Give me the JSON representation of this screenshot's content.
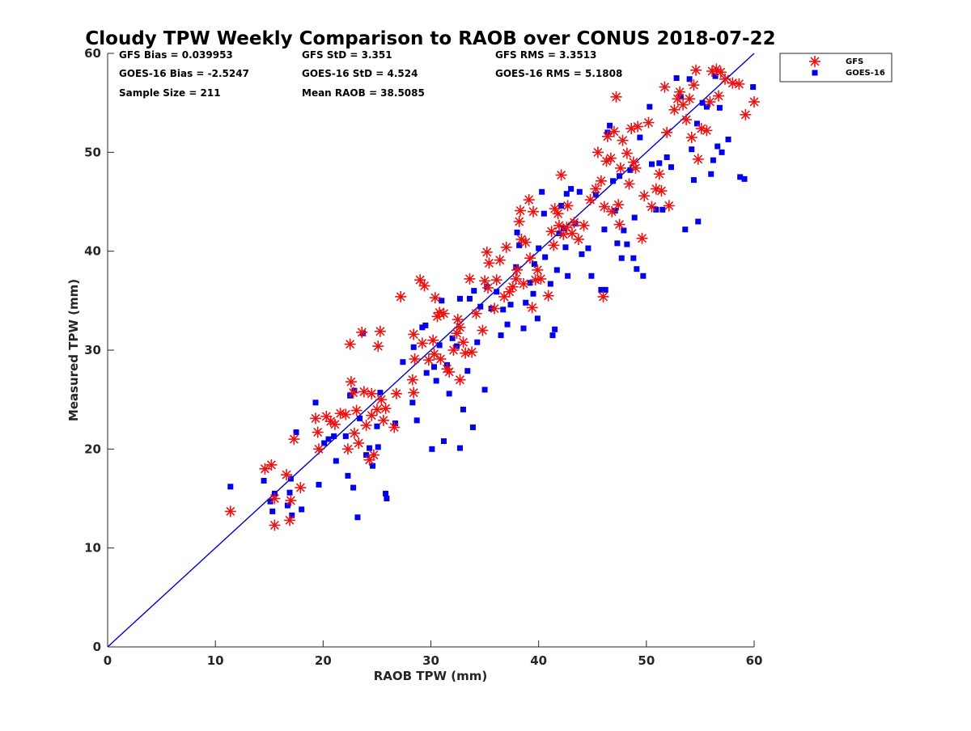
{
  "chart_data": {
    "type": "scatter",
    "title": "Cloudy TPW Weekly Comparison to RAOB over CONUS 2018-07-22",
    "xlabel": "RAOB TPW (mm)",
    "ylabel": "Measured TPW (mm)",
    "xlim": [
      0,
      60
    ],
    "ylim": [
      0,
      60
    ],
    "xticks": [
      "0",
      "10",
      "20",
      "30",
      "40",
      "50",
      "60"
    ],
    "yticks": [
      "0",
      "10",
      "20",
      "30",
      "40",
      "50",
      "60"
    ],
    "grid": false,
    "legend_position": "top-right, outside plot",
    "stats": [
      "GFS Bias = 0.039953",
      "GOES-16 Bias = -2.5247",
      "Sample Size = 211",
      "GFS StD = 3.351",
      "GOES-16 StD = 4.524",
      "Mean RAOB = 38.5085",
      "GFS RMS = 3.3513",
      "GOES-16 RMS = 5.1808"
    ],
    "reference_line": {
      "points": [
        [
          0,
          0
        ],
        [
          60,
          60
        ]
      ],
      "color": "#0000cc"
    },
    "series": [
      {
        "name": "GFS",
        "marker": "asterisk",
        "color": "#ee1111",
        "points": [
          [
            11.4,
            13.7
          ],
          [
            14.6,
            18.0
          ],
          [
            15.2,
            18.4
          ],
          [
            15.5,
            15.0
          ],
          [
            15.5,
            12.3
          ],
          [
            16.6,
            17.4
          ],
          [
            16.9,
            12.8
          ],
          [
            17.0,
            14.8
          ],
          [
            17.3,
            21.0
          ],
          [
            17.9,
            16.1
          ],
          [
            19.3,
            23.1
          ],
          [
            19.5,
            21.7
          ],
          [
            19.6,
            20.0
          ],
          [
            20.3,
            23.3
          ],
          [
            20.7,
            22.8
          ],
          [
            21.1,
            22.5
          ],
          [
            21.6,
            23.6
          ],
          [
            22.1,
            23.5
          ],
          [
            22.3,
            20.0
          ],
          [
            22.5,
            30.6
          ],
          [
            22.6,
            26.8
          ],
          [
            22.8,
            25.7
          ],
          [
            22.9,
            21.6
          ],
          [
            23.1,
            23.9
          ],
          [
            23.3,
            20.6
          ],
          [
            23.6,
            31.8
          ],
          [
            23.8,
            25.8
          ],
          [
            24.0,
            22.4
          ],
          [
            24.3,
            18.9
          ],
          [
            24.5,
            25.6
          ],
          [
            24.5,
            23.4
          ],
          [
            24.7,
            19.4
          ],
          [
            25.0,
            24.0
          ],
          [
            25.1,
            30.4
          ],
          [
            25.3,
            31.9
          ],
          [
            25.4,
            25.0
          ],
          [
            25.6,
            22.9
          ],
          [
            25.8,
            24.1
          ],
          [
            26.6,
            22.2
          ],
          [
            26.8,
            25.6
          ],
          [
            27.2,
            35.4
          ],
          [
            28.3,
            27.0
          ],
          [
            28.4,
            25.7
          ],
          [
            28.4,
            31.6
          ],
          [
            28.5,
            29.1
          ],
          [
            29.0,
            37.1
          ],
          [
            29.2,
            30.7
          ],
          [
            29.4,
            36.5
          ],
          [
            29.8,
            29.0
          ],
          [
            30.2,
            31.0
          ],
          [
            30.3,
            29.6
          ],
          [
            30.4,
            35.3
          ],
          [
            30.6,
            33.4
          ],
          [
            30.8,
            33.8
          ],
          [
            30.9,
            29.1
          ],
          [
            31.2,
            33.7
          ],
          [
            31.5,
            28.1
          ],
          [
            31.7,
            27.8
          ],
          [
            32.1,
            30.0
          ],
          [
            32.4,
            31.7
          ],
          [
            32.5,
            33.1
          ],
          [
            32.7,
            32.3
          ],
          [
            32.7,
            27.0
          ],
          [
            33.0,
            30.8
          ],
          [
            33.2,
            29.7
          ],
          [
            33.6,
            37.2
          ],
          [
            33.8,
            29.8
          ],
          [
            34.2,
            33.7
          ],
          [
            34.8,
            32.0
          ],
          [
            35.0,
            37.0
          ],
          [
            35.2,
            39.9
          ],
          [
            35.3,
            36.3
          ],
          [
            35.4,
            38.8
          ],
          [
            35.9,
            34.2
          ],
          [
            36.1,
            37.1
          ],
          [
            36.4,
            39.1
          ],
          [
            36.8,
            35.4
          ],
          [
            37.0,
            40.4
          ],
          [
            37.3,
            35.9
          ],
          [
            37.6,
            36.4
          ],
          [
            37.9,
            37.2
          ],
          [
            38.0,
            38.1
          ],
          [
            38.2,
            43.0
          ],
          [
            38.3,
            44.1
          ],
          [
            38.4,
            41.2
          ],
          [
            38.6,
            36.7
          ],
          [
            38.8,
            40.9
          ],
          [
            39.1,
            45.2
          ],
          [
            39.2,
            39.3
          ],
          [
            39.4,
            34.3
          ],
          [
            39.5,
            44.0
          ],
          [
            39.7,
            37.1
          ],
          [
            39.9,
            38.1
          ],
          [
            40.2,
            37.2
          ],
          [
            40.9,
            35.5
          ],
          [
            41.2,
            42.0
          ],
          [
            41.4,
            40.6
          ],
          [
            41.5,
            44.3
          ],
          [
            41.8,
            43.8
          ],
          [
            41.9,
            42.6
          ],
          [
            42.1,
            47.7
          ],
          [
            42.3,
            41.7
          ],
          [
            42.6,
            42.4
          ],
          [
            42.7,
            44.6
          ],
          [
            43.1,
            41.8
          ],
          [
            43.3,
            42.9
          ],
          [
            43.7,
            41.2
          ],
          [
            44.2,
            42.6
          ],
          [
            44.8,
            45.2
          ],
          [
            45.3,
            46.3
          ],
          [
            45.5,
            50.0
          ],
          [
            45.8,
            47.1
          ],
          [
            46.0,
            35.4
          ],
          [
            46.1,
            44.5
          ],
          [
            46.3,
            49.1
          ],
          [
            46.4,
            51.6
          ],
          [
            46.7,
            49.4
          ],
          [
            46.8,
            44.0
          ],
          [
            47.0,
            52.1
          ],
          [
            47.2,
            55.6
          ],
          [
            47.4,
            44.7
          ],
          [
            47.5,
            42.7
          ],
          [
            47.6,
            48.4
          ],
          [
            47.8,
            51.2
          ],
          [
            48.2,
            49.9
          ],
          [
            48.4,
            46.8
          ],
          [
            48.6,
            52.4
          ],
          [
            48.8,
            49.0
          ],
          [
            49.0,
            48.4
          ],
          [
            49.2,
            52.6
          ],
          [
            49.6,
            41.3
          ],
          [
            49.8,
            45.6
          ],
          [
            50.2,
            53.0
          ],
          [
            50.5,
            44.5
          ],
          [
            50.9,
            46.3
          ],
          [
            51.2,
            47.8
          ],
          [
            51.4,
            46.1
          ],
          [
            51.7,
            56.6
          ],
          [
            51.9,
            52.0
          ],
          [
            52.1,
            44.6
          ],
          [
            52.6,
            54.3
          ],
          [
            52.9,
            55.4
          ],
          [
            53.1,
            56.1
          ],
          [
            53.4,
            54.8
          ],
          [
            53.7,
            53.3
          ],
          [
            54.0,
            55.4
          ],
          [
            54.2,
            51.5
          ],
          [
            54.4,
            56.8
          ],
          [
            54.6,
            58.3
          ],
          [
            54.8,
            49.3
          ],
          [
            55.1,
            52.4
          ],
          [
            55.6,
            52.2
          ],
          [
            55.9,
            55.1
          ],
          [
            56.1,
            58.2
          ],
          [
            56.5,
            58.4
          ],
          [
            56.7,
            55.7
          ],
          [
            56.9,
            58.1
          ],
          [
            57.3,
            57.4
          ],
          [
            58.0,
            57.0
          ],
          [
            58.6,
            56.9
          ],
          [
            59.2,
            53.8
          ],
          [
            60.0,
            55.1
          ]
        ]
      },
      {
        "name": "GOES-16",
        "marker": "square",
        "color": "#0000ee",
        "points": [
          [
            11.4,
            16.2
          ],
          [
            14.5,
            16.8
          ],
          [
            15.1,
            14.7
          ],
          [
            15.3,
            13.7
          ],
          [
            15.5,
            15.5
          ],
          [
            16.7,
            14.3
          ],
          [
            16.9,
            15.6
          ],
          [
            17.0,
            17.0
          ],
          [
            17.1,
            13.3
          ],
          [
            17.5,
            21.7
          ],
          [
            18.0,
            13.9
          ],
          [
            19.3,
            24.7
          ],
          [
            19.6,
            16.4
          ],
          [
            20.1,
            20.6
          ],
          [
            20.5,
            21.0
          ],
          [
            21.0,
            21.3
          ],
          [
            21.2,
            18.8
          ],
          [
            22.1,
            21.3
          ],
          [
            22.3,
            17.3
          ],
          [
            22.5,
            25.4
          ],
          [
            22.8,
            16.1
          ],
          [
            22.9,
            25.9
          ],
          [
            23.2,
            13.1
          ],
          [
            23.4,
            23.1
          ],
          [
            23.7,
            31.7
          ],
          [
            24.0,
            19.4
          ],
          [
            24.3,
            20.1
          ],
          [
            24.6,
            18.3
          ],
          [
            25.0,
            22.3
          ],
          [
            25.1,
            20.2
          ],
          [
            25.3,
            25.7
          ],
          [
            25.8,
            15.5
          ],
          [
            25.9,
            15.0
          ],
          [
            26.7,
            22.6
          ],
          [
            27.4,
            28.8
          ],
          [
            28.3,
            24.7
          ],
          [
            28.4,
            30.3
          ],
          [
            28.7,
            22.9
          ],
          [
            29.2,
            32.3
          ],
          [
            29.5,
            32.5
          ],
          [
            29.6,
            27.7
          ],
          [
            30.1,
            20.0
          ],
          [
            30.3,
            28.3
          ],
          [
            30.5,
            26.9
          ],
          [
            30.8,
            30.5
          ],
          [
            31.0,
            35.0
          ],
          [
            31.2,
            20.8
          ],
          [
            31.5,
            28.5
          ],
          [
            31.7,
            25.6
          ],
          [
            32.0,
            31.2
          ],
          [
            32.4,
            30.4
          ],
          [
            32.7,
            35.2
          ],
          [
            32.7,
            20.1
          ],
          [
            33.0,
            24.0
          ],
          [
            33.4,
            27.9
          ],
          [
            33.6,
            35.2
          ],
          [
            33.9,
            22.2
          ],
          [
            34.0,
            36.0
          ],
          [
            34.3,
            30.8
          ],
          [
            34.6,
            34.4
          ],
          [
            35.0,
            26.0
          ],
          [
            35.2,
            36.4
          ],
          [
            35.6,
            34.2
          ],
          [
            36.1,
            35.9
          ],
          [
            36.5,
            31.5
          ],
          [
            36.7,
            34.1
          ],
          [
            37.1,
            32.6
          ],
          [
            37.4,
            34.6
          ],
          [
            37.9,
            38.4
          ],
          [
            38.0,
            41.9
          ],
          [
            38.2,
            40.6
          ],
          [
            38.6,
            32.2
          ],
          [
            38.8,
            34.8
          ],
          [
            39.2,
            36.8
          ],
          [
            39.5,
            35.7
          ],
          [
            39.6,
            38.7
          ],
          [
            39.9,
            33.2
          ],
          [
            40.0,
            40.3
          ],
          [
            40.3,
            46.0
          ],
          [
            40.5,
            43.8
          ],
          [
            40.6,
            39.4
          ],
          [
            41.1,
            36.7
          ],
          [
            41.3,
            31.5
          ],
          [
            41.5,
            32.1
          ],
          [
            41.7,
            38.1
          ],
          [
            41.9,
            41.8
          ],
          [
            42.1,
            44.6
          ],
          [
            42.3,
            42.3
          ],
          [
            42.5,
            40.4
          ],
          [
            42.6,
            45.8
          ],
          [
            42.7,
            37.5
          ],
          [
            43.0,
            46.3
          ],
          [
            43.4,
            42.8
          ],
          [
            43.8,
            46.0
          ],
          [
            44.0,
            39.7
          ],
          [
            44.6,
            40.3
          ],
          [
            44.9,
            37.5
          ],
          [
            45.3,
            45.7
          ],
          [
            45.8,
            36.1
          ],
          [
            46.1,
            42.2
          ],
          [
            46.2,
            36.1
          ],
          [
            46.4,
            52.0
          ],
          [
            46.6,
            52.7
          ],
          [
            46.9,
            47.1
          ],
          [
            47.1,
            44.1
          ],
          [
            47.3,
            40.8
          ],
          [
            47.5,
            47.6
          ],
          [
            47.7,
            39.3
          ],
          [
            47.9,
            42.1
          ],
          [
            48.2,
            40.7
          ],
          [
            48.5,
            48.2
          ],
          [
            48.8,
            39.3
          ],
          [
            48.9,
            43.4
          ],
          [
            49.1,
            38.2
          ],
          [
            49.4,
            51.5
          ],
          [
            49.7,
            37.5
          ],
          [
            50.3,
            54.6
          ],
          [
            50.5,
            48.8
          ],
          [
            50.9,
            44.2
          ],
          [
            51.2,
            48.9
          ],
          [
            51.5,
            44.2
          ],
          [
            51.9,
            49.5
          ],
          [
            52.3,
            48.5
          ],
          [
            52.8,
            57.5
          ],
          [
            53.2,
            55.6
          ],
          [
            53.6,
            42.2
          ],
          [
            54.0,
            57.4
          ],
          [
            54.2,
            50.3
          ],
          [
            54.4,
            47.2
          ],
          [
            54.7,
            52.9
          ],
          [
            54.8,
            43.0
          ],
          [
            55.2,
            55.0
          ],
          [
            55.6,
            54.6
          ],
          [
            56.0,
            47.8
          ],
          [
            56.2,
            49.2
          ],
          [
            56.4,
            57.7
          ],
          [
            56.6,
            50.6
          ],
          [
            56.8,
            54.5
          ],
          [
            57.0,
            50.0
          ],
          [
            57.6,
            51.3
          ],
          [
            58.7,
            47.5
          ],
          [
            59.1,
            47.3
          ],
          [
            59.9,
            56.6
          ]
        ]
      }
    ]
  }
}
